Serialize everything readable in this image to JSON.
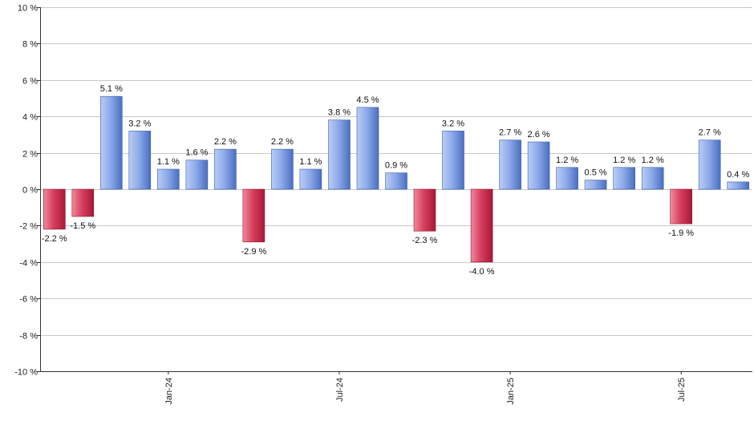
{
  "chart_data": {
    "type": "bar",
    "title": "",
    "xlabel": "",
    "ylabel": "",
    "ylim": [
      -10,
      10
    ],
    "yticks": [
      10,
      8,
      6,
      4,
      2,
      0,
      -2,
      -4,
      -6,
      -8,
      -10
    ],
    "ytick_labels": [
      "10 %",
      "8 %",
      "6 %",
      "4 %",
      "2 %",
      "0 %",
      "-2 %",
      "-4 %",
      "-6 %",
      "-8 %",
      "-10 %"
    ],
    "grid": true,
    "xtick_labels": [
      {
        "label": "Jan-24",
        "index": 4
      },
      {
        "label": "Jul-24",
        "index": 10
      },
      {
        "label": "Jan-25",
        "index": 16
      },
      {
        "label": "Jul-25",
        "index": 22
      }
    ],
    "values": [
      -2.2,
      -1.5,
      5.1,
      3.2,
      1.1,
      1.6,
      2.2,
      -2.9,
      2.2,
      1.1,
      3.8,
      4.5,
      0.9,
      -2.3,
      3.2,
      -4.0,
      2.7,
      2.6,
      1.2,
      0.5,
      1.2,
      1.2,
      -1.9,
      2.7,
      0.4
    ],
    "data_labels": [
      "-2.2 %",
      "-1.5 %",
      "5.1 %",
      "3.2 %",
      "1.1 %",
      "1.6 %",
      "2.2 %",
      "-2.9 %",
      "2.2 %",
      "1.1 %",
      "3.8 %",
      "4.5 %",
      "0.9 %",
      "-2.3 %",
      "3.2 %",
      "-4.0 %",
      "2.7 %",
      "2.6 %",
      "1.2 %",
      "0.5 %",
      "1.2 %",
      "1.2 %",
      "-1.9 %",
      "2.7 %",
      "0.4 %"
    ],
    "colors": {
      "positive_light": "#b9cdf5",
      "positive_dark": "#4a6fc0",
      "negative_light": "#f08a9d",
      "negative_dark": "#a81836",
      "grid": "#c8c8c8",
      "axis": "#333333"
    }
  }
}
